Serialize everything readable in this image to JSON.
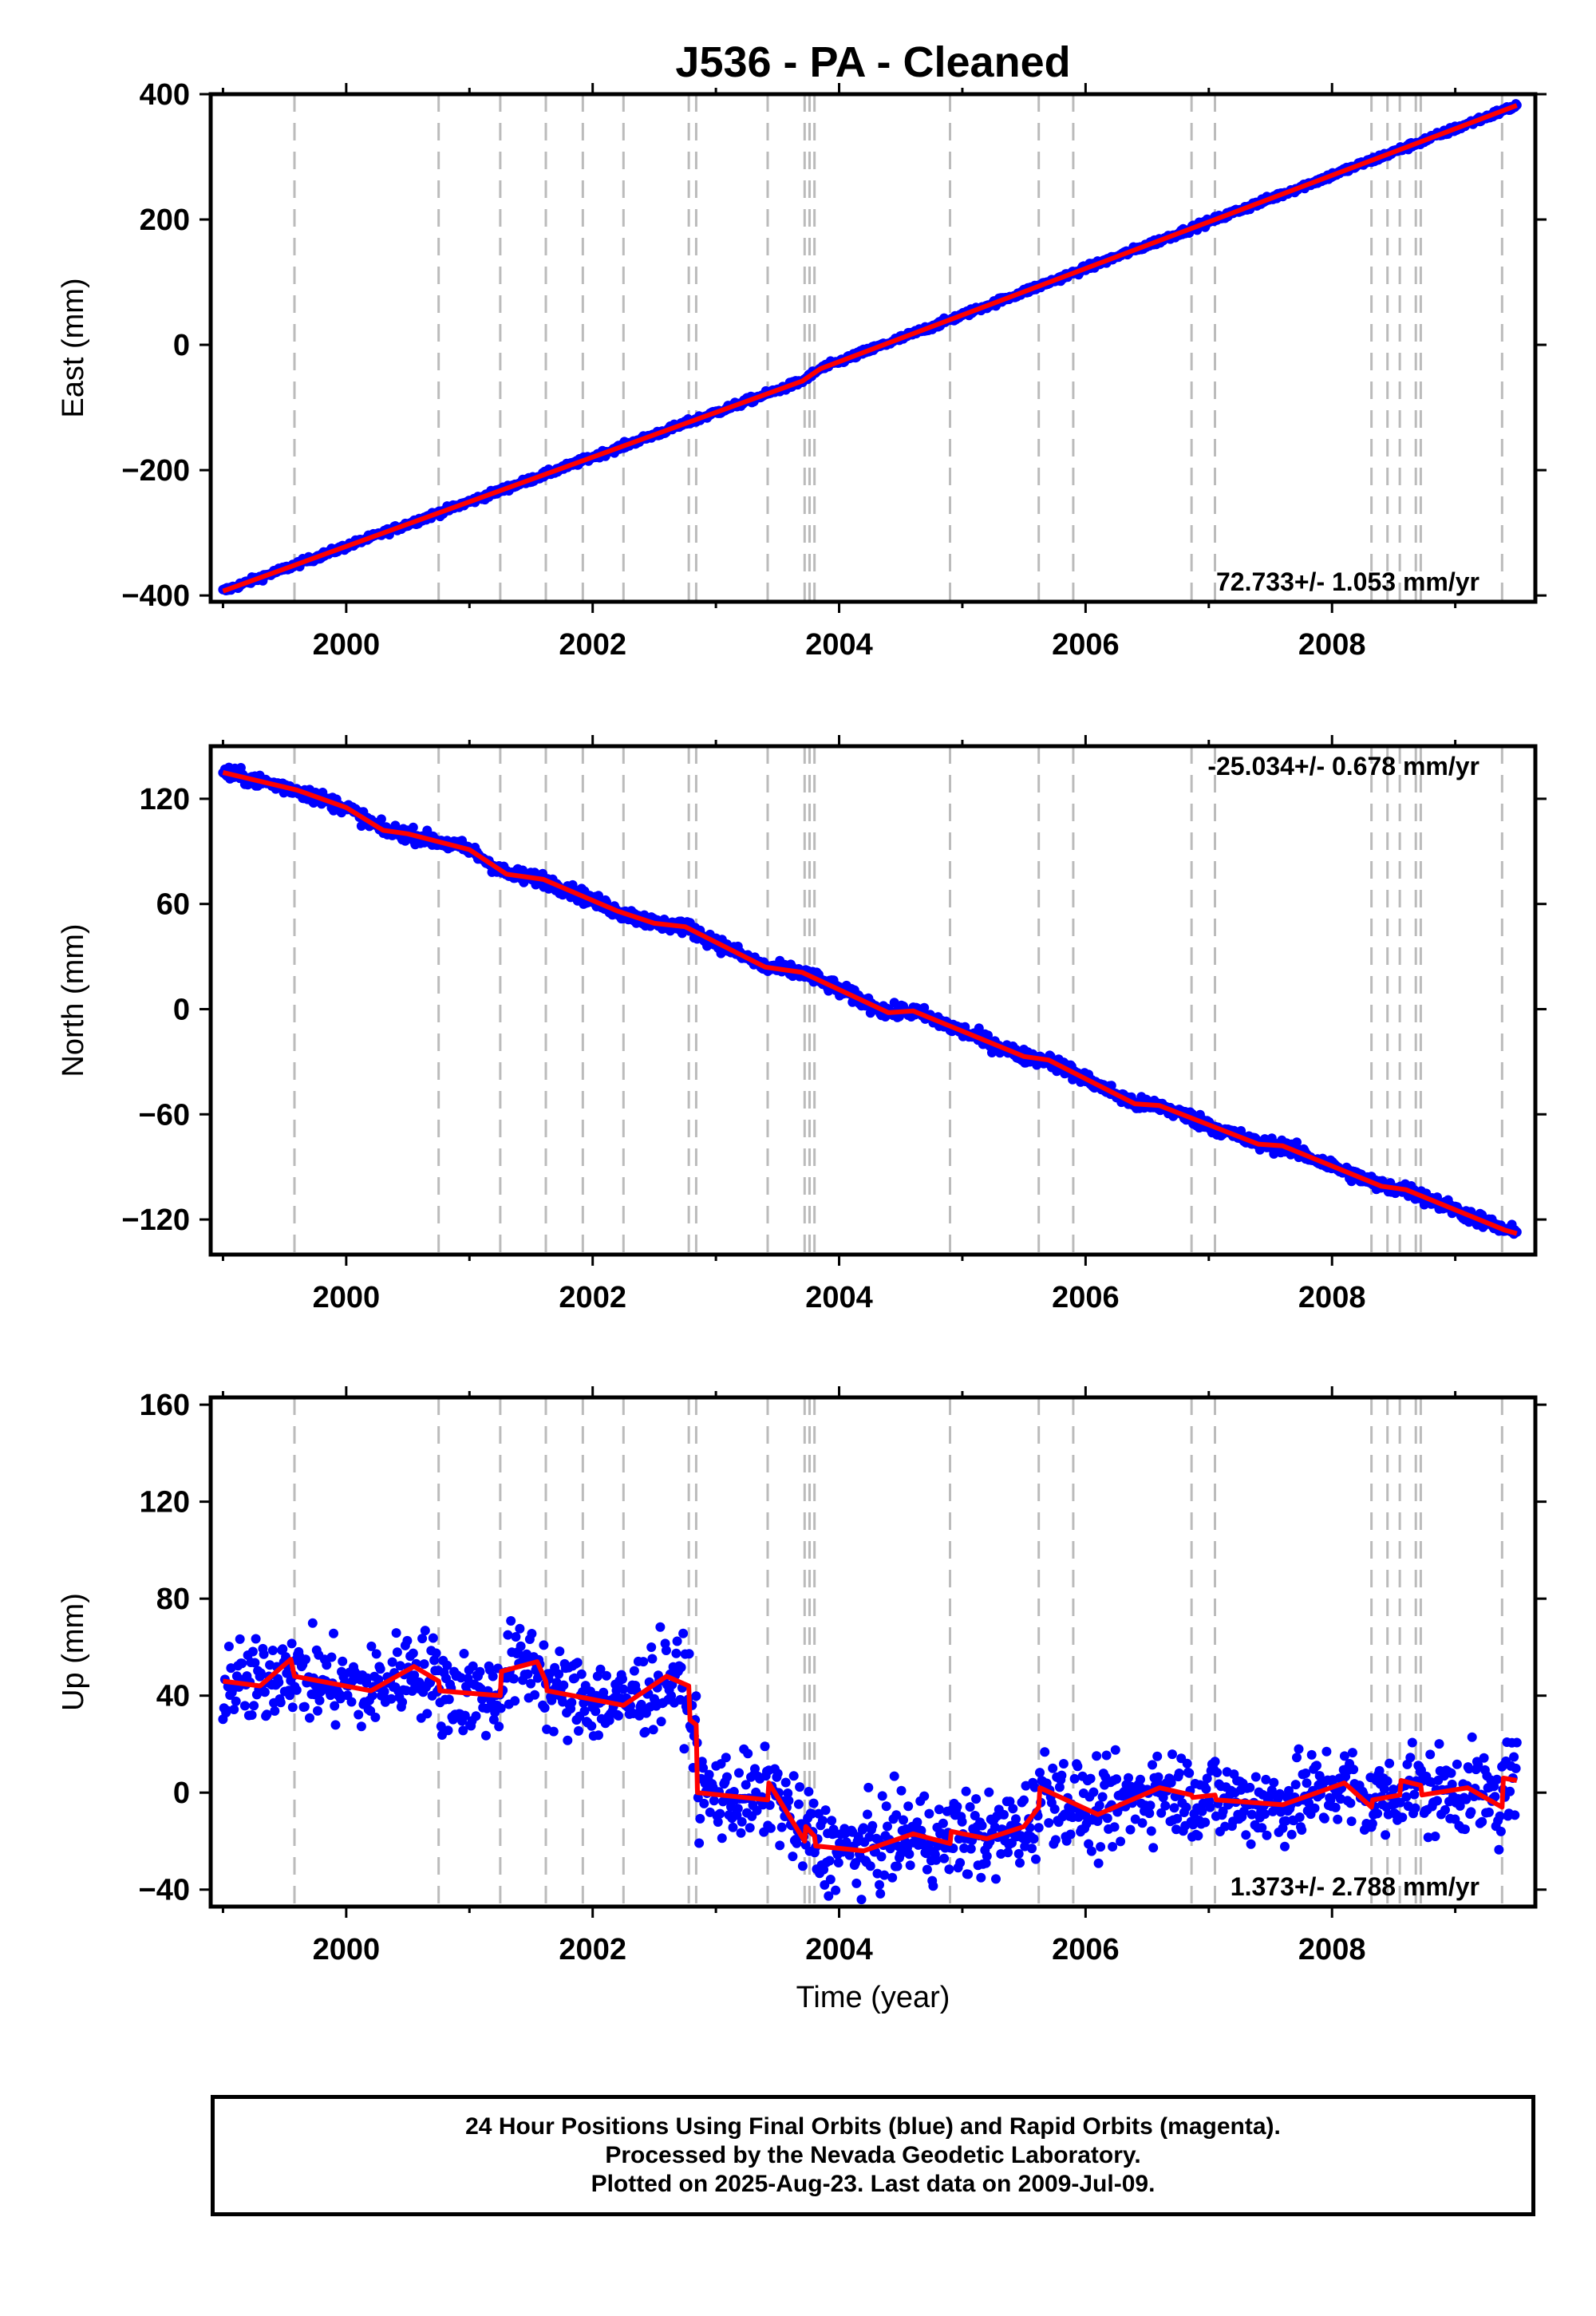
{
  "chart_data": {
    "title": "J536  - PA - Cleaned",
    "type": "scatter",
    "x_ticks": [
      "2000",
      "2002",
      "2004",
      "2006",
      "2008"
    ],
    "x_range": [
      1998.9,
      2009.65
    ],
    "xlabel": "Time (year)",
    "grid": false,
    "event_lines": [
      1999.58,
      2000.75,
      2001.25,
      2001.62,
      2001.92,
      2002.25,
      2002.78,
      2002.84,
      2003.42,
      2003.72,
      2003.76,
      2003.8,
      2004.9,
      2005.62,
      2005.9,
      2006.86,
      2007.05,
      2008.32,
      2008.45,
      2008.55,
      2008.68,
      2008.72,
      2009.38
    ],
    "colors": {
      "final_orbits": "#0000ff",
      "model": "#ff0000",
      "event_line": "#bbbbbb",
      "frame": "#000000"
    },
    "panels": [
      {
        "ylabel": "East (mm)",
        "ylim": [
          -410,
          400
        ],
        "y_ticks": [
          400,
          200,
          0,
          -200,
          -400
        ],
        "rate": "72.733+/- 1.053 mm/yr",
        "rate_position": "bottom-right",
        "series": [
          {
            "name": "model",
            "x": [
              1999.0,
              2003.7,
              2003.85,
              2009.5
            ],
            "values": [
              -393,
              -58,
              -38,
              382
            ]
          }
        ]
      },
      {
        "ylabel": "North (mm)",
        "ylim": [
          -140,
          150
        ],
        "y_ticks": [
          120,
          60,
          0,
          -60,
          -120
        ],
        "rate": "-25.034+/- 0.678 mm/yr",
        "rate_position": "top-right",
        "series": [
          {
            "name": "model",
            "x": [
              1999.0,
              1999.6,
              2000.0,
              2000.3,
              2000.5,
              2001.0,
              2001.3,
              2001.6,
              2002.2,
              2002.5,
              2002.75,
              2003.4,
              2003.7,
              2004.4,
              2004.6,
              2005.5,
              2005.7,
              2006.4,
              2006.6,
              2007.4,
              2007.6,
              2008.4,
              2008.6,
              2009.4,
              2009.5
            ],
            "values": [
              135,
              125,
              115,
              102,
              100,
              91,
              77,
              74,
              56,
              49,
              47,
              24,
              21,
              -2,
              -1,
              -27,
              -29,
              -54,
              -55,
              -77,
              -78,
              -101,
              -103,
              -126,
              -128
            ]
          }
        ]
      },
      {
        "ylabel": "Up (mm)",
        "ylim": [
          -47,
          163
        ],
        "y_ticks": [
          160,
          120,
          80,
          40,
          0,
          -40
        ],
        "rate": "1.373+/- 2.788 mm/yr",
        "rate_position": "bottom-right",
        "series": [
          {
            "name": "model",
            "x": [
              1999.0,
              1999.3,
              1999.55,
              1999.58,
              2000.2,
              2000.55,
              2000.75,
              2000.76,
              2001.25,
              2001.26,
              2001.55,
              2001.62,
              2001.63,
              2002.25,
              2002.6,
              2002.78,
              2002.79,
              2002.84,
              2002.85,
              2003.42,
              2003.43,
              2003.72,
              2003.73,
              2003.8,
              2003.81,
              2004.2,
              2004.6,
              2004.9,
              2004.91,
              2005.2,
              2005.5,
              2005.62,
              2005.63,
              2006.1,
              2006.6,
              2006.86,
              2006.87,
              2007.05,
              2007.06,
              2007.6,
              2008.1,
              2008.32,
              2008.33,
              2008.55,
              2008.56,
              2008.72,
              2008.73,
              2009.1,
              2009.38,
              2009.39,
              2009.5
            ],
            "values": [
              46,
              44,
              55,
              48,
              42,
              52,
              46,
              42,
              40,
              50,
              54,
              46,
              42,
              36,
              48,
              44,
              30,
              28,
              0,
              -3,
              4,
              -20,
              -14,
              -18,
              -22,
              -24,
              -17,
              -21,
              -16,
              -19,
              -14,
              -6,
              2,
              -9,
              2,
              -1,
              -2,
              -1,
              -3,
              -5,
              4,
              -6,
              -3,
              -1,
              5,
              3,
              -1,
              2,
              -6,
              6,
              5
            ]
          }
        ]
      }
    ]
  },
  "caption": {
    "line1": "24 Hour Positions Using Final Orbits (blue) and Rapid Orbits (magenta).",
    "line2": "Processed by the Nevada Geodetic Laboratory.",
    "line3": "Plotted on 2025-Aug-23. Last data on 2009-Jul-09."
  }
}
